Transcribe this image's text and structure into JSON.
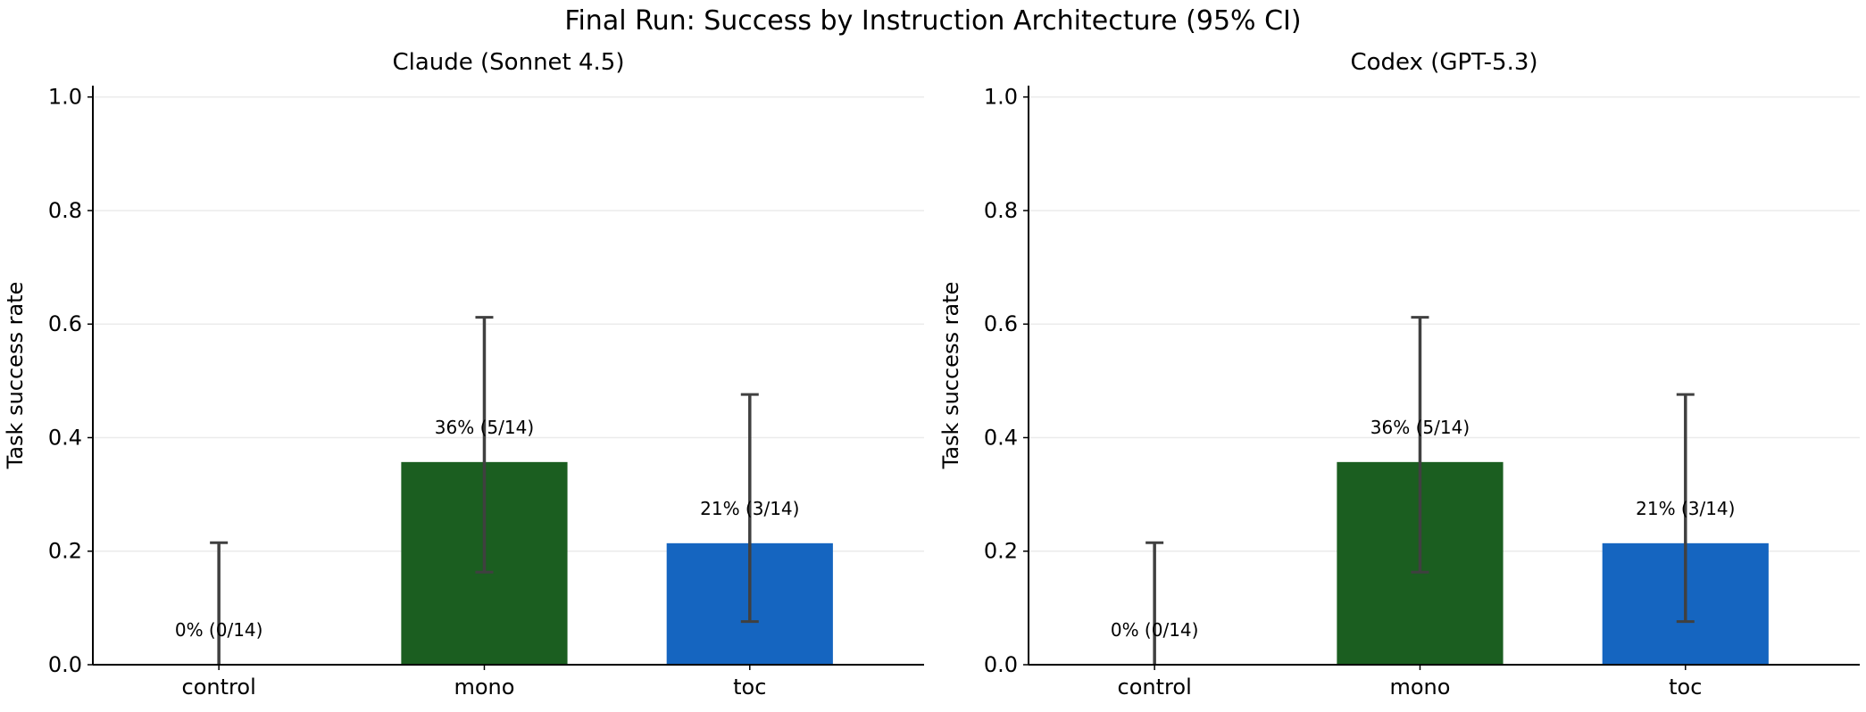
{
  "chart_data": {
    "title": "Final Run: Success by Instruction Architecture (95% CI)",
    "panels": [
      {
        "type": "bar",
        "title": "Claude (Sonnet 4.5)",
        "ylabel": "Task success rate",
        "xlabel": "",
        "ylim": [
          0,
          1.02
        ],
        "yticks": [
          0.0,
          0.2,
          0.4,
          0.6,
          0.8,
          1.0
        ],
        "ytick_labels": [
          "0.0",
          "0.2",
          "0.4",
          "0.6",
          "0.8",
          "1.0"
        ],
        "grid": "y",
        "categories": [
          "control",
          "mono",
          "toc"
        ],
        "values": [
          0.0,
          0.357,
          0.214
        ],
        "ci_low": [
          0.0,
          0.163,
          0.076
        ],
        "ci_high": [
          0.215,
          0.612,
          0.476
        ],
        "colors": [
          "#9e9e9e",
          "#1b5e20",
          "#1565c0"
        ],
        "data_labels": [
          "0% (0/14)",
          "36% (5/14)",
          "21% (3/14)"
        ]
      },
      {
        "type": "bar",
        "title": "Codex (GPT-5.3)",
        "ylabel": "Task success rate",
        "xlabel": "",
        "ylim": [
          0,
          1.02
        ],
        "yticks": [
          0.0,
          0.2,
          0.4,
          0.6,
          0.8,
          1.0
        ],
        "ytick_labels": [
          "0.0",
          "0.2",
          "0.4",
          "0.6",
          "0.8",
          "1.0"
        ],
        "grid": "y",
        "categories": [
          "control",
          "mono",
          "toc"
        ],
        "values": [
          0.0,
          0.357,
          0.214
        ],
        "ci_low": [
          0.0,
          0.163,
          0.076
        ],
        "ci_high": [
          0.215,
          0.612,
          0.476
        ],
        "colors": [
          "#9e9e9e",
          "#1b5e20",
          "#1565c0"
        ],
        "data_labels": [
          "0% (0/14)",
          "36% (5/14)",
          "21% (3/14)"
        ]
      }
    ]
  }
}
